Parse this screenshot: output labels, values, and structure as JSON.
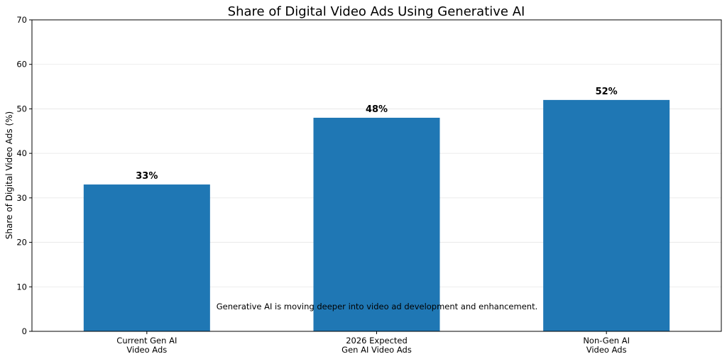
{
  "chart_data": {
    "type": "bar",
    "title": "Share of Digital Video Ads Using Generative AI",
    "xlabel": "",
    "ylabel": "Share of Digital Video Ads (%)",
    "categories": [
      "Current Gen AI\nVideo Ads",
      "2026 Expected\nGen AI Video Ads",
      "Non-Gen AI\nVideo Ads"
    ],
    "values": [
      33,
      48,
      52
    ],
    "value_labels": [
      "33%",
      "48%",
      "52%"
    ],
    "ylim": [
      0,
      70
    ],
    "yticks": [
      0,
      10,
      20,
      30,
      40,
      50,
      60,
      70
    ],
    "grid": "horizontal",
    "bar_color": "#1f77b4",
    "annotation": "Generative AI is moving deeper into video ad development and enhancement."
  }
}
